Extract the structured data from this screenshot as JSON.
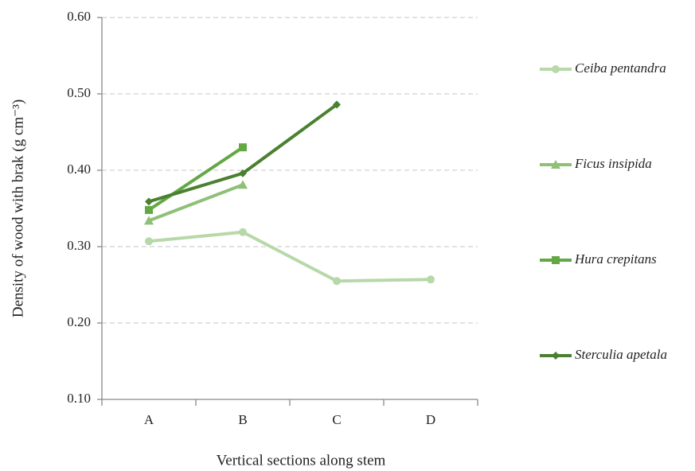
{
  "chart_data": {
    "type": "line",
    "x_label": "Vertical sections along stem",
    "y_label": "Density of wood with brak (g cm⁻³)",
    "categories": [
      "A",
      "B",
      "C",
      "D"
    ],
    "series": [
      {
        "name": "Ceiba pentandra",
        "color": "#b7d8a9",
        "marker": "circle",
        "values": [
          0.307,
          0.319,
          0.255,
          0.257
        ]
      },
      {
        "name": "Ficus insipida",
        "color": "#8fc077",
        "marker": "triangle",
        "values": [
          0.334,
          0.381,
          null,
          null
        ]
      },
      {
        "name": "Hura crepitans",
        "color": "#64a844",
        "marker": "square",
        "values": [
          0.348,
          0.43,
          null,
          null
        ]
      },
      {
        "name": "Sterculia apetala",
        "color": "#4a8030",
        "marker": "diamond",
        "values": [
          0.359,
          0.396,
          0.486,
          null
        ]
      }
    ],
    "ylim": [
      0.1,
      0.6
    ],
    "yticks": [
      {
        "value": 0.1,
        "label": "0.10"
      },
      {
        "value": 0.2,
        "label": "0.20"
      },
      {
        "value": 0.3,
        "label": "0.30"
      },
      {
        "value": 0.4,
        "label": "0.40"
      },
      {
        "value": 0.5,
        "label": "0.50"
      },
      {
        "value": 0.6,
        "label": "0.60"
      }
    ],
    "grid": true,
    "legend": "right"
  }
}
